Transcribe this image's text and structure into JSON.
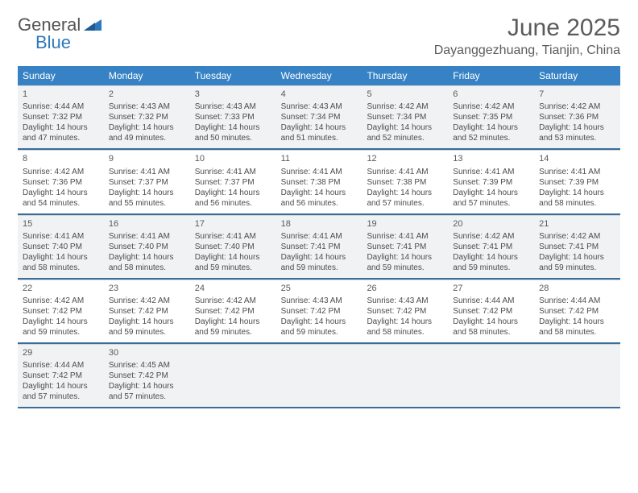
{
  "brand": {
    "part1": "General",
    "part2": "Blue"
  },
  "title": "June 2025",
  "location": "Dayanggezhuang, Tianjin, China",
  "colors": {
    "header_bg": "#3782c4",
    "accent": "#2f78bd",
    "row_divider": "#3a6d9a",
    "shade_bg": "#f1f2f3"
  },
  "day_headers": [
    "Sunday",
    "Monday",
    "Tuesday",
    "Wednesday",
    "Thursday",
    "Friday",
    "Saturday"
  ],
  "weeks": [
    [
      {
        "d": "1",
        "sr": "4:44 AM",
        "ss": "7:32 PM",
        "dl": "14 hours and 47 minutes."
      },
      {
        "d": "2",
        "sr": "4:43 AM",
        "ss": "7:32 PM",
        "dl": "14 hours and 49 minutes."
      },
      {
        "d": "3",
        "sr": "4:43 AM",
        "ss": "7:33 PM",
        "dl": "14 hours and 50 minutes."
      },
      {
        "d": "4",
        "sr": "4:43 AM",
        "ss": "7:34 PM",
        "dl": "14 hours and 51 minutes."
      },
      {
        "d": "5",
        "sr": "4:42 AM",
        "ss": "7:34 PM",
        "dl": "14 hours and 52 minutes."
      },
      {
        "d": "6",
        "sr": "4:42 AM",
        "ss": "7:35 PM",
        "dl": "14 hours and 52 minutes."
      },
      {
        "d": "7",
        "sr": "4:42 AM",
        "ss": "7:36 PM",
        "dl": "14 hours and 53 minutes."
      }
    ],
    [
      {
        "d": "8",
        "sr": "4:42 AM",
        "ss": "7:36 PM",
        "dl": "14 hours and 54 minutes."
      },
      {
        "d": "9",
        "sr": "4:41 AM",
        "ss": "7:37 PM",
        "dl": "14 hours and 55 minutes."
      },
      {
        "d": "10",
        "sr": "4:41 AM",
        "ss": "7:37 PM",
        "dl": "14 hours and 56 minutes."
      },
      {
        "d": "11",
        "sr": "4:41 AM",
        "ss": "7:38 PM",
        "dl": "14 hours and 56 minutes."
      },
      {
        "d": "12",
        "sr": "4:41 AM",
        "ss": "7:38 PM",
        "dl": "14 hours and 57 minutes."
      },
      {
        "d": "13",
        "sr": "4:41 AM",
        "ss": "7:39 PM",
        "dl": "14 hours and 57 minutes."
      },
      {
        "d": "14",
        "sr": "4:41 AM",
        "ss": "7:39 PM",
        "dl": "14 hours and 58 minutes."
      }
    ],
    [
      {
        "d": "15",
        "sr": "4:41 AM",
        "ss": "7:40 PM",
        "dl": "14 hours and 58 minutes."
      },
      {
        "d": "16",
        "sr": "4:41 AM",
        "ss": "7:40 PM",
        "dl": "14 hours and 58 minutes."
      },
      {
        "d": "17",
        "sr": "4:41 AM",
        "ss": "7:40 PM",
        "dl": "14 hours and 59 minutes."
      },
      {
        "d": "18",
        "sr": "4:41 AM",
        "ss": "7:41 PM",
        "dl": "14 hours and 59 minutes."
      },
      {
        "d": "19",
        "sr": "4:41 AM",
        "ss": "7:41 PM",
        "dl": "14 hours and 59 minutes."
      },
      {
        "d": "20",
        "sr": "4:42 AM",
        "ss": "7:41 PM",
        "dl": "14 hours and 59 minutes."
      },
      {
        "d": "21",
        "sr": "4:42 AM",
        "ss": "7:41 PM",
        "dl": "14 hours and 59 minutes."
      }
    ],
    [
      {
        "d": "22",
        "sr": "4:42 AM",
        "ss": "7:42 PM",
        "dl": "14 hours and 59 minutes."
      },
      {
        "d": "23",
        "sr": "4:42 AM",
        "ss": "7:42 PM",
        "dl": "14 hours and 59 minutes."
      },
      {
        "d": "24",
        "sr": "4:42 AM",
        "ss": "7:42 PM",
        "dl": "14 hours and 59 minutes."
      },
      {
        "d": "25",
        "sr": "4:43 AM",
        "ss": "7:42 PM",
        "dl": "14 hours and 59 minutes."
      },
      {
        "d": "26",
        "sr": "4:43 AM",
        "ss": "7:42 PM",
        "dl": "14 hours and 58 minutes."
      },
      {
        "d": "27",
        "sr": "4:44 AM",
        "ss": "7:42 PM",
        "dl": "14 hours and 58 minutes."
      },
      {
        "d": "28",
        "sr": "4:44 AM",
        "ss": "7:42 PM",
        "dl": "14 hours and 58 minutes."
      }
    ],
    [
      {
        "d": "29",
        "sr": "4:44 AM",
        "ss": "7:42 PM",
        "dl": "14 hours and 57 minutes."
      },
      {
        "d": "30",
        "sr": "4:45 AM",
        "ss": "7:42 PM",
        "dl": "14 hours and 57 minutes."
      },
      null,
      null,
      null,
      null,
      null
    ]
  ],
  "labels": {
    "sunrise": "Sunrise:",
    "sunset": "Sunset:",
    "daylight": "Daylight:"
  }
}
